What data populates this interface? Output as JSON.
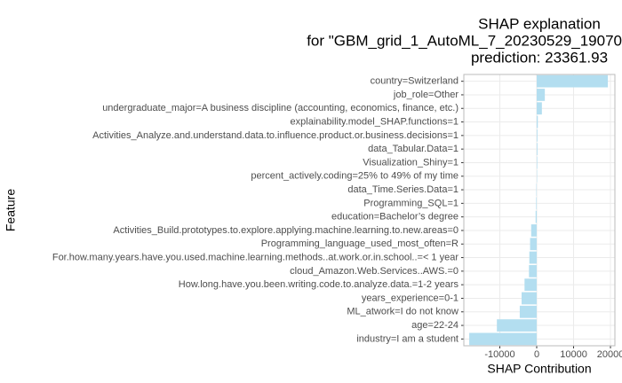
{
  "chart_data": {
    "type": "barh",
    "title": [
      "SHAP explanation",
      "for \"GBM_grid_1_AutoML_7_20230529_19070",
      "prediction: 23361.93"
    ],
    "x_label": "SHAP Contribution",
    "y_label": "Feature",
    "categories": [
      "country=Switzerland",
      "job_role=Other",
      "undergraduate_major=A business discipline (accounting, economics, finance, etc.)",
      "explainability.model_SHAP.functions=1",
      "Activities_Analyze.and.understand.data.to.influence.product.or.business.decisions=1",
      "data_Tabular.Data=1",
      "Visualization_Shiny=1",
      "percent_actively.coding=25% to 49% of my time",
      "data_Time.Series.Data=1",
      "Programming_SQL=1",
      "education=Bachelor’s degree",
      "Activities_Build.prototypes.to.explore.applying.machine.learning.to.new.areas=0",
      "Programming_language_used_most_often=R",
      "For.how.many.years.have.you.used.machine.learning.methods..at.work.or.in.school..=< 1 year",
      "cloud_Amazon.Web.Services..AWS.=0",
      "How.long.have.you.been.writing.code.to.analyze.data.=1-2 years",
      "years_experience=0-1",
      "ML_atwork=I do not know",
      "age=22-24",
      "industry=I am a student"
    ],
    "values": [
      19300,
      2200,
      1400,
      300,
      200,
      200,
      150,
      100,
      -100,
      -150,
      -300,
      -1500,
      -1800,
      -2000,
      -2100,
      -3300,
      -4100,
      -4600,
      -10800,
      -18300
    ],
    "color": "#b3def0",
    "xlim": [
      -19760,
      21200
    ],
    "xticks": [
      -10000,
      0,
      10000,
      20000
    ],
    "grid": true
  }
}
